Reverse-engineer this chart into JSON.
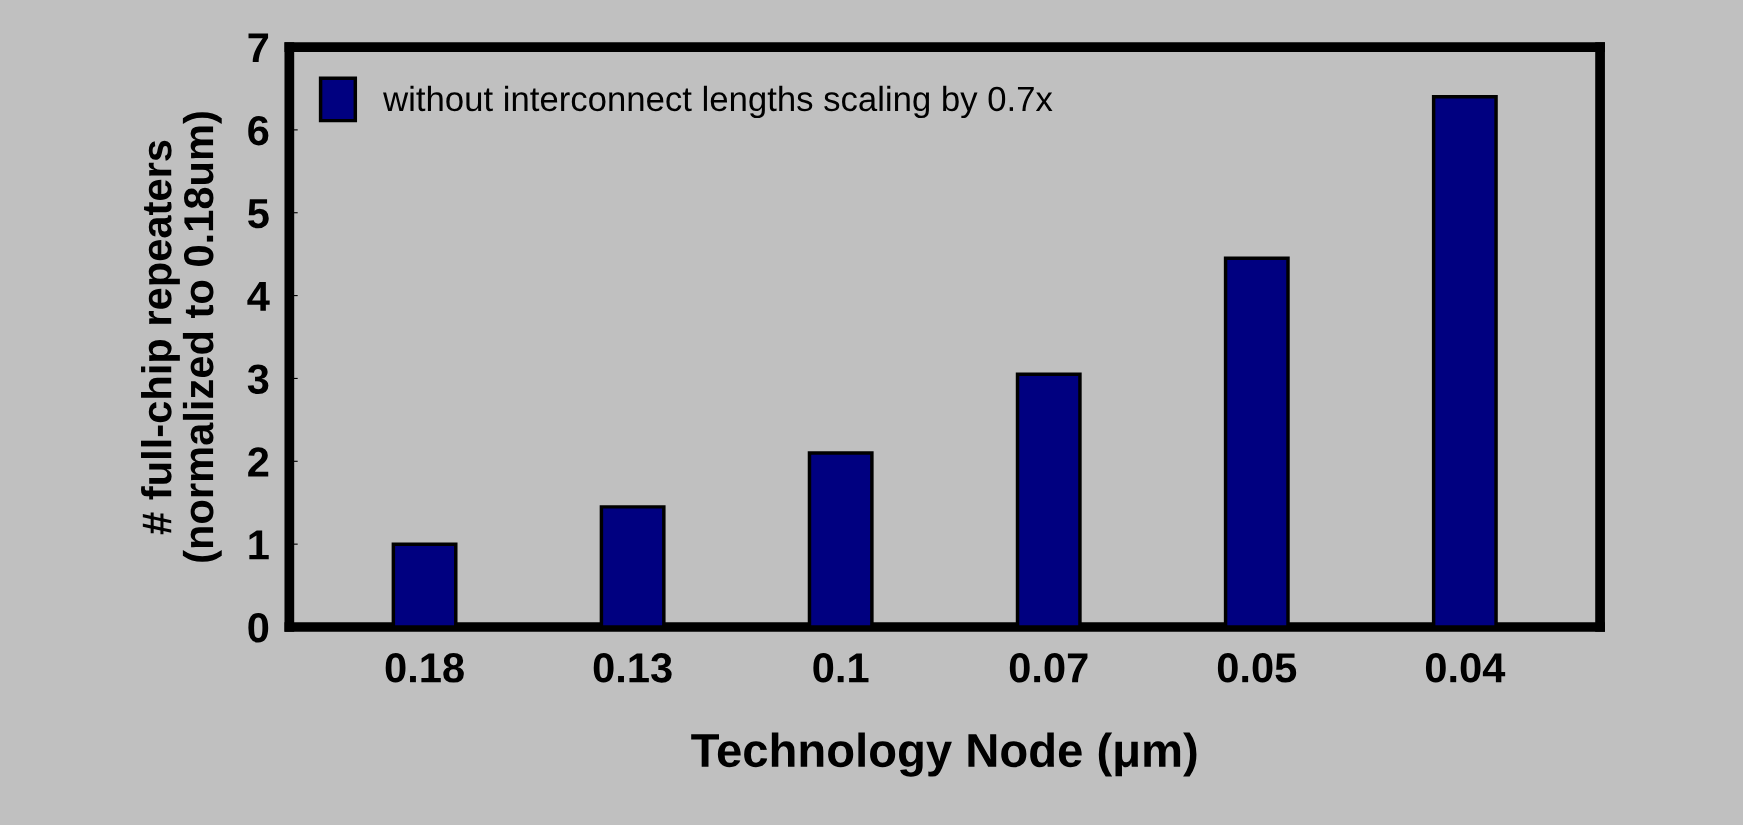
{
  "chart_data": {
    "type": "bar",
    "xlabel": "Technology Node (μm)",
    "ylabel": "# full-chip repeaters\n(normalized to 0.18um)",
    "categories": [
      "0.18",
      "0.13",
      "0.1",
      "0.07",
      "0.05",
      "0.04"
    ],
    "series": [
      {
        "name": "without interconnect lengths scaling by 0.7x",
        "color": "#000080",
        "values": [
          1.0,
          1.45,
          2.1,
          3.05,
          4.45,
          6.4
        ]
      }
    ],
    "ylim": [
      0,
      7
    ],
    "yticks": [
      0,
      1,
      2,
      3,
      4,
      5,
      6,
      7
    ],
    "legend": "top left",
    "grid": false
  }
}
